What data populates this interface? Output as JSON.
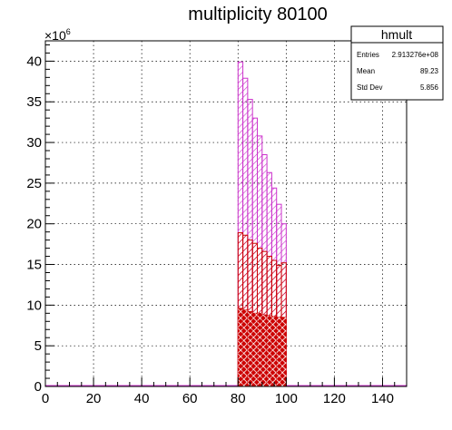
{
  "chart_data": {
    "type": "bar",
    "title": "multiplicity 80100",
    "xlabel": "",
    "ylabel": "",
    "xlim": [
      0,
      150
    ],
    "ylim": [
      0,
      42.5
    ],
    "y_exponent_label": "×10",
    "y_exponent_power": "6",
    "grid": true,
    "x_ticks": [
      "0",
      "20",
      "40",
      "60",
      "80",
      "100",
      "120",
      "140"
    ],
    "y_ticks": [
      "0",
      "5",
      "10",
      "15",
      "20",
      "25",
      "30",
      "35",
      "40"
    ],
    "bin_width": 2,
    "series": [
      {
        "color": "#cc33cc",
        "bins_x": [
          80,
          82,
          84,
          86,
          88,
          90,
          92,
          94,
          96,
          98
        ],
        "values": [
          39.9,
          37.9,
          35.3,
          33.0,
          30.8,
          28.5,
          26.3,
          24.4,
          22.4,
          20.0
        ]
      },
      {
        "color": "#cc0000",
        "bins_x": [
          80,
          82,
          84,
          86,
          88,
          90,
          92,
          94,
          96,
          98
        ],
        "values": [
          18.9,
          18.6,
          18.0,
          17.6,
          17.0,
          16.6,
          16.0,
          15.5,
          14.9,
          15.2
        ]
      },
      {
        "color": "#cc0000",
        "bins_x": [
          80,
          82,
          84,
          86,
          88,
          90,
          92,
          94,
          96,
          98
        ],
        "values": [
          9.6,
          9.4,
          9.2,
          9.0,
          9.0,
          8.8,
          8.7,
          8.6,
          8.5,
          8.5
        ]
      }
    ],
    "stats_box": {
      "title": "hmult",
      "rows": [
        {
          "label": "Entries",
          "value": "2.913276e+08"
        },
        {
          "label": "Mean",
          "value": "89.23"
        },
        {
          "label": "Std Dev",
          "value": "5.856"
        }
      ]
    }
  }
}
